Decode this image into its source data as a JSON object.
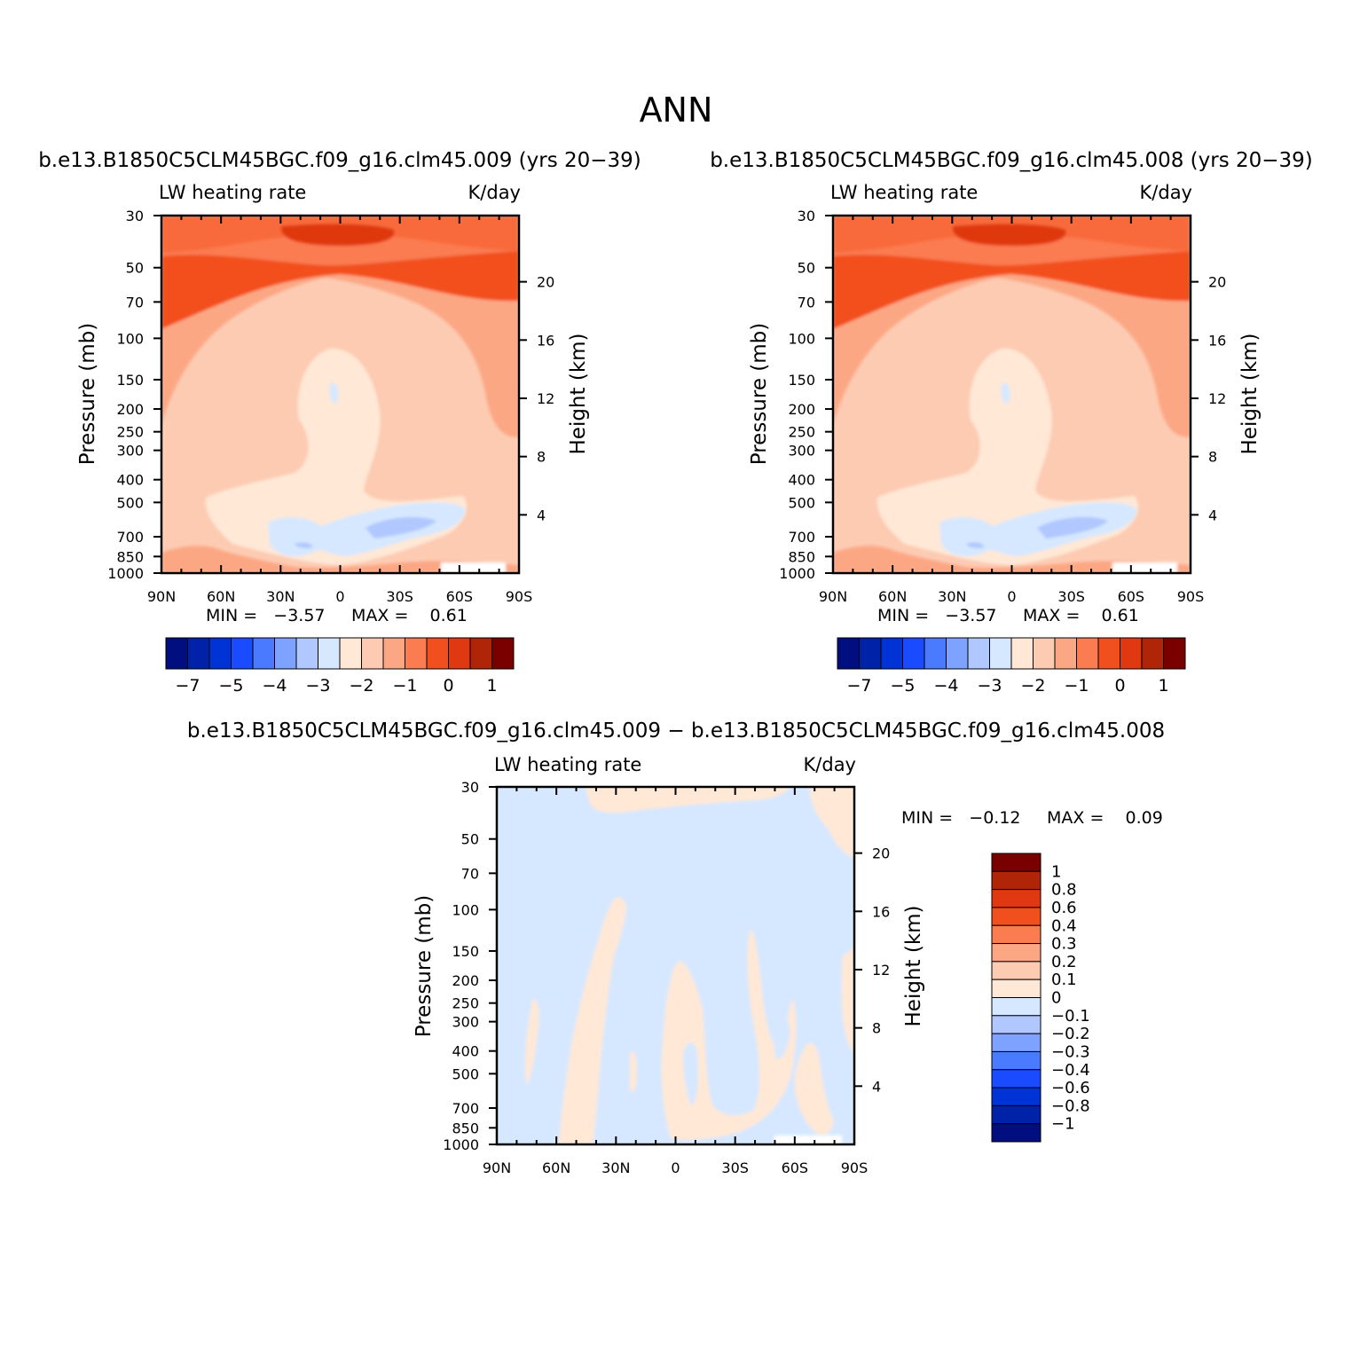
{
  "figure_title": "ANN",
  "panels": [
    {
      "id": "case1",
      "title": "b.e13.B1850C5CLM45BGC.f09_g16.clm45.009 (yrs 20−39)",
      "left_label": "LW heating rate",
      "right_label": "K/day",
      "min_text": "MIN =   −3.57",
      "max_text": "MAX =    0.61"
    },
    {
      "id": "case2",
      "title": "b.e13.B1850C5CLM45BGC.f09_g16.clm45.008 (yrs 20−39)",
      "left_label": "LW heating rate",
      "right_label": "K/day",
      "min_text": "MIN =   −3.57",
      "max_text": "MAX =    0.61"
    },
    {
      "id": "diff",
      "title": "b.e13.B1850C5CLM45BGC.f09_g16.clm45.009 − b.e13.B1850C5CLM45BGC.f09_g16.clm45.008",
      "left_label": "LW heating rate",
      "right_label": "K/day",
      "min_text": "MIN =   −0.12",
      "max_text": "MAX =    0.09"
    }
  ],
  "axes": {
    "ylabel": "Pressure (mb)",
    "y2label": "Height (km)",
    "x_ticks": [
      "90N",
      "60N",
      "30N",
      "0",
      "30S",
      "60S",
      "90S"
    ],
    "y_ticks": [
      "30",
      "50",
      "70",
      "100",
      "150",
      "200",
      "250",
      "300",
      "400",
      "500",
      "700",
      "850",
      "1000"
    ],
    "y2_ticks": [
      "20",
      "16",
      "12",
      "8",
      "4"
    ]
  },
  "colorbars": {
    "main": {
      "colors": [
        "#000e80",
        "#0022a8",
        "#0033d6",
        "#1a4bff",
        "#4a7aff",
        "#7ea2ff",
        "#b0c8ff",
        "#d6e8ff",
        "#ffe8d6",
        "#fdcbb2",
        "#fca784",
        "#fb7c51",
        "#f24f1f",
        "#e03810",
        "#b02408",
        "#7a0000"
      ],
      "labels": [
        "−7",
        "−5",
        "−4",
        "−3",
        "−2",
        "−1",
        "0",
        "1"
      ]
    },
    "diff": {
      "colors": [
        "#000e80",
        "#0022a8",
        "#0033d6",
        "#1a4bff",
        "#4a7aff",
        "#7ea2ff",
        "#b0c8ff",
        "#d6e8ff",
        "#ffe8d6",
        "#fdcbb2",
        "#fca784",
        "#fb7c51",
        "#f24f1f",
        "#e03810",
        "#b02408",
        "#7a0000"
      ],
      "labels": [
        "1",
        "0.8",
        "0.6",
        "0.4",
        "0.3",
        "0.2",
        "0.1",
        "0",
        "−0.1",
        "−0.2",
        "−0.3",
        "−0.4",
        "−0.6",
        "−0.8",
        "−1"
      ]
    }
  },
  "chart_data": [
    {
      "type": "heatmap",
      "title": "b.e13.B1850C5CLM45BGC.f09_g16.clm45.009 (yrs 20−39)",
      "variable": "LW heating rate",
      "units": "K/day",
      "xlabel": "",
      "ylabel": "Pressure (mb)",
      "y2label": "Height (km)",
      "xlim": [
        90,
        -90
      ],
      "ylim": [
        1000,
        30
      ],
      "yscale": "log",
      "min": -3.57,
      "max": 0.61,
      "levels_colorbar": [
        -7,
        -6,
        -5,
        -4.5,
        -4,
        -3.5,
        -3,
        -2.5,
        -2,
        -1.5,
        -1,
        -0.5,
        0,
        0.5,
        1
      ]
    },
    {
      "type": "heatmap",
      "title": "b.e13.B1850C5CLM45BGC.f09_g16.clm45.008 (yrs 20−39)",
      "variable": "LW heating rate",
      "units": "K/day",
      "xlabel": "",
      "ylabel": "Pressure (mb)",
      "y2label": "Height (km)",
      "xlim": [
        90,
        -90
      ],
      "ylim": [
        1000,
        30
      ],
      "yscale": "log",
      "min": -3.57,
      "max": 0.61
    },
    {
      "type": "heatmap",
      "title": "b.e13.B1850C5CLM45BGC.f09_g16.clm45.009 − b.e13.B1850C5CLM45BGC.f09_g16.clm45.008",
      "variable": "LW heating rate",
      "units": "K/day",
      "xlabel": "",
      "ylabel": "Pressure (mb)",
      "y2label": "Height (km)",
      "xlim": [
        90,
        -90
      ],
      "ylim": [
        1000,
        30
      ],
      "yscale": "log",
      "min": -0.12,
      "max": 0.09,
      "levels_colorbar": [
        -1,
        -0.8,
        -0.6,
        -0.4,
        -0.3,
        -0.2,
        -0.1,
        0,
        0.1,
        0.2,
        0.3,
        0.4,
        0.6,
        0.8,
        1
      ]
    }
  ]
}
